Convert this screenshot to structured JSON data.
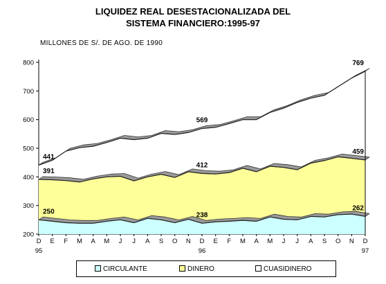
{
  "chart_data": {
    "type": "area",
    "title_line1": "LIQUIDEZ REAL DESESTACIONALIZADA DEL",
    "title_line2": "SISTEMA FINANCIERO:1995-97",
    "unit_label": "MILLONES DE S/. DE AGO. DE 1990",
    "stacked": true,
    "ylim": [
      200,
      800
    ],
    "yticks": [
      200,
      300,
      400,
      500,
      600,
      700,
      800
    ],
    "grid": false,
    "legend_position": "bottom",
    "x_labels": [
      "D",
      "E",
      "F",
      "M",
      "A",
      "M",
      "J",
      "J",
      "A",
      "S",
      "O",
      "N",
      "D",
      "E",
      "F",
      "M",
      "A",
      "M",
      "J",
      "J",
      "A",
      "S",
      "O",
      "N",
      "D"
    ],
    "x_year_labels": [
      {
        "index": 0,
        "label": "95"
      },
      {
        "index": 12,
        "label": "96"
      },
      {
        "index": 24,
        "label": "97"
      }
    ],
    "series": [
      {
        "name": "CIRCULANTE",
        "color": "#ccffff",
        "values": [
          250,
          245,
          240,
          238,
          238,
          245,
          250,
          240,
          255,
          250,
          240,
          252,
          238,
          243,
          245,
          248,
          245,
          260,
          252,
          250,
          262,
          260,
          268,
          270,
          262
        ]
      },
      {
        "name": "DINERO",
        "color": "#ffff99",
        "values": [
          391,
          390,
          387,
          382,
          393,
          400,
          402,
          386,
          400,
          409,
          398,
          418,
          412,
          410,
          415,
          430,
          418,
          437,
          433,
          425,
          448,
          457,
          470,
          465,
          459
        ]
      },
      {
        "name": "CUASIDINERO",
        "color": "#ffffff",
        "values": [
          441,
          458,
          490,
          502,
          507,
          520,
          535,
          530,
          535,
          552,
          548,
          555,
          569,
          573,
          586,
          600,
          600,
          625,
          640,
          660,
          675,
          685,
          715,
          745,
          769
        ]
      }
    ],
    "data_labels": [
      {
        "index": 0,
        "level": 1,
        "text": "250"
      },
      {
        "index": 0,
        "level": 2,
        "text": "391"
      },
      {
        "index": 0,
        "level": 3,
        "text": "441"
      },
      {
        "index": 12,
        "level": 1,
        "text": "238"
      },
      {
        "index": 12,
        "level": 2,
        "text": "412"
      },
      {
        "index": 12,
        "level": 3,
        "text": "569"
      },
      {
        "index": 24,
        "level": 1,
        "text": "262"
      },
      {
        "index": 24,
        "level": 2,
        "text": "459"
      },
      {
        "index": 24,
        "level": 3,
        "text": "769"
      }
    ]
  }
}
